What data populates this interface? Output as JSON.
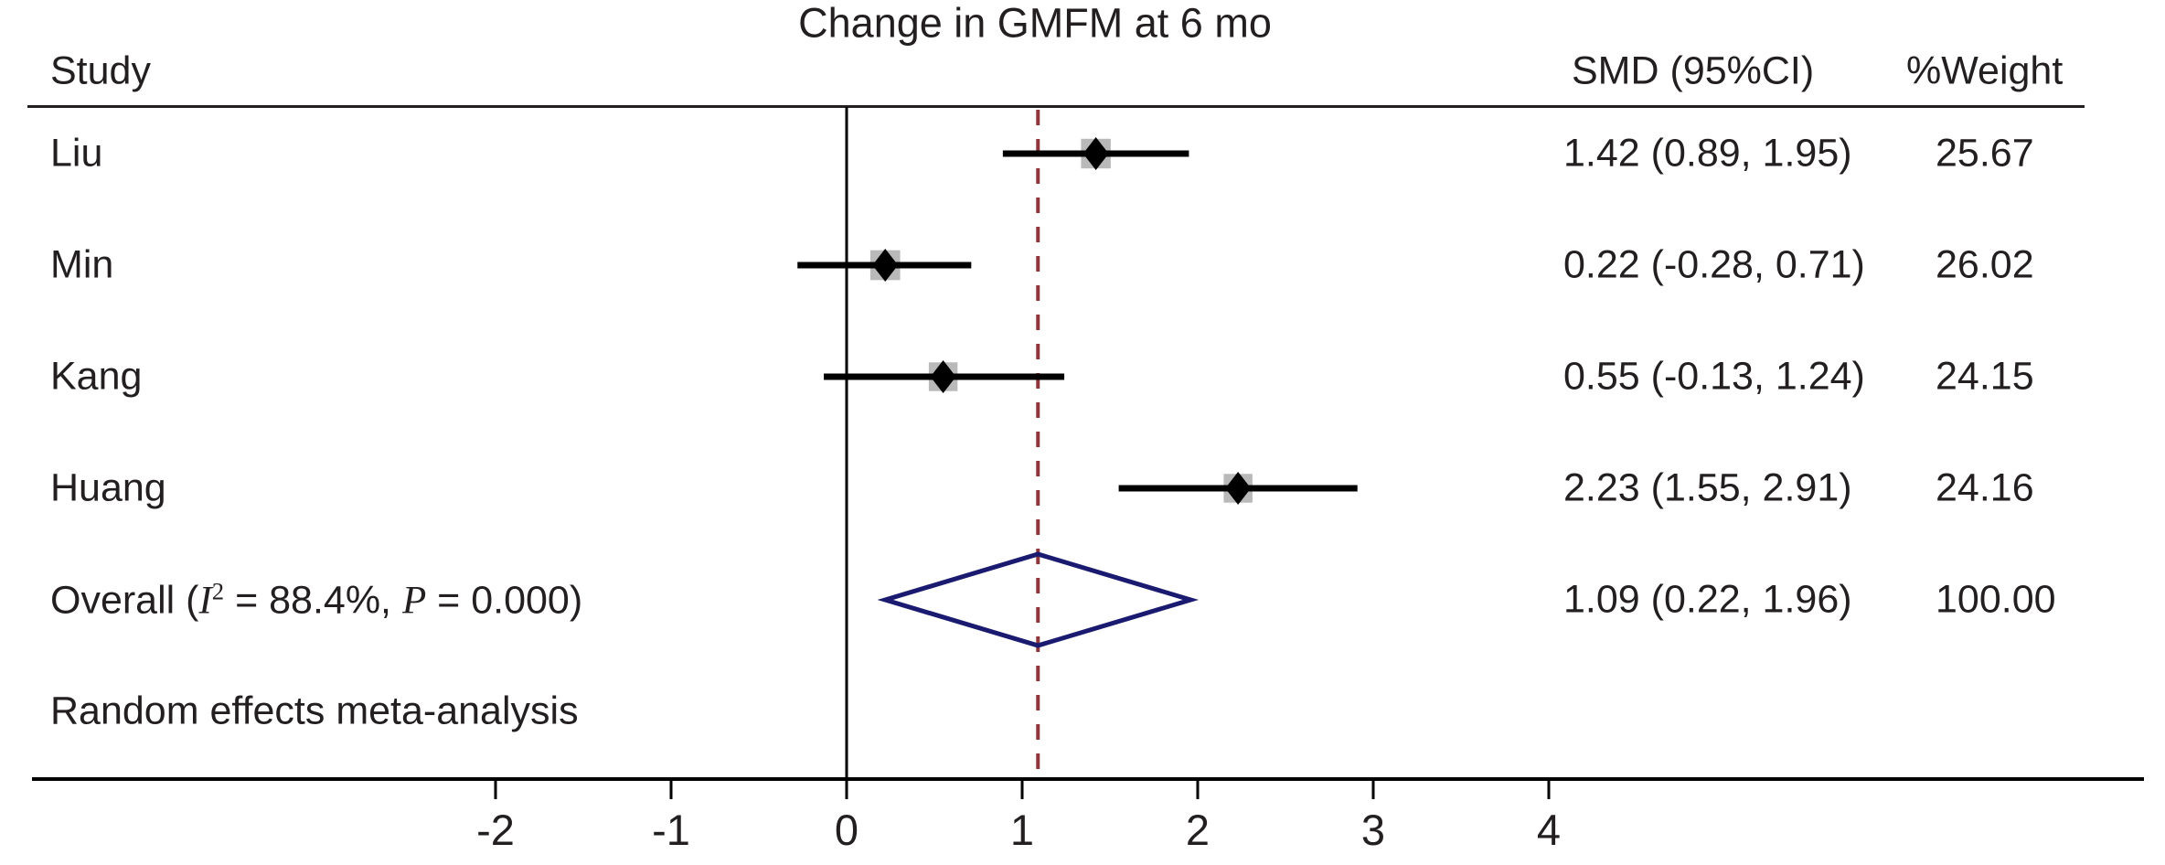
{
  "chart_data": {
    "type": "forest",
    "title": "Change in GMFM at 6 mo",
    "columns": {
      "study": "Study",
      "smd": "SMD (95%CI)",
      "weight": "%Weight"
    },
    "x_axis": {
      "ticks": [
        -2,
        -1,
        0,
        1,
        2,
        3,
        4
      ],
      "zero_line": 0,
      "overall_line": 1.09,
      "xlim": [
        -2.7,
        4.9
      ]
    },
    "studies": [
      {
        "label": "Liu",
        "est": 1.42,
        "lo": 0.89,
        "hi": 1.95,
        "ci_text": "1.42 (0.89, 1.95)",
        "weight": 25.67,
        "weight_text": "25.67"
      },
      {
        "label": "Min",
        "est": 0.22,
        "lo": -0.28,
        "hi": 0.71,
        "ci_text": "0.22 (-0.28, 0.71)",
        "weight": 26.02,
        "weight_text": "26.02"
      },
      {
        "label": "Kang",
        "est": 0.55,
        "lo": -0.13,
        "hi": 1.24,
        "ci_text": "0.55 (-0.13, 1.24)",
        "weight": 24.15,
        "weight_text": "24.15"
      },
      {
        "label": "Huang",
        "est": 2.23,
        "lo": 1.55,
        "hi": 2.91,
        "ci_text": "2.23 (1.55, 2.91)",
        "weight": 24.16,
        "weight_text": "24.16"
      }
    ],
    "overall": {
      "label_text": "Overall (I² = 88.4%, P = 0.000)",
      "label_pre": "Overall (",
      "stat_i": "I",
      "stat_i_sup": "2",
      "label_mid": " = 88.4%, ",
      "stat_p": "P",
      "label_post": " = 0.000)",
      "i_squared": "88.4%",
      "p_value": "0.000",
      "est": 1.09,
      "lo": 0.22,
      "hi": 1.96,
      "ci_text": "1.09 (0.22, 1.96)",
      "weight": 100.0,
      "weight_text": "100.00"
    },
    "note": "Random effects meta-analysis",
    "colors": {
      "text": "#231f20",
      "line": "#000000",
      "diamond_outline": "#1a1a70",
      "overall_dashed_line": "#90353b",
      "weight_box_fill": "#b9b9b9"
    }
  }
}
